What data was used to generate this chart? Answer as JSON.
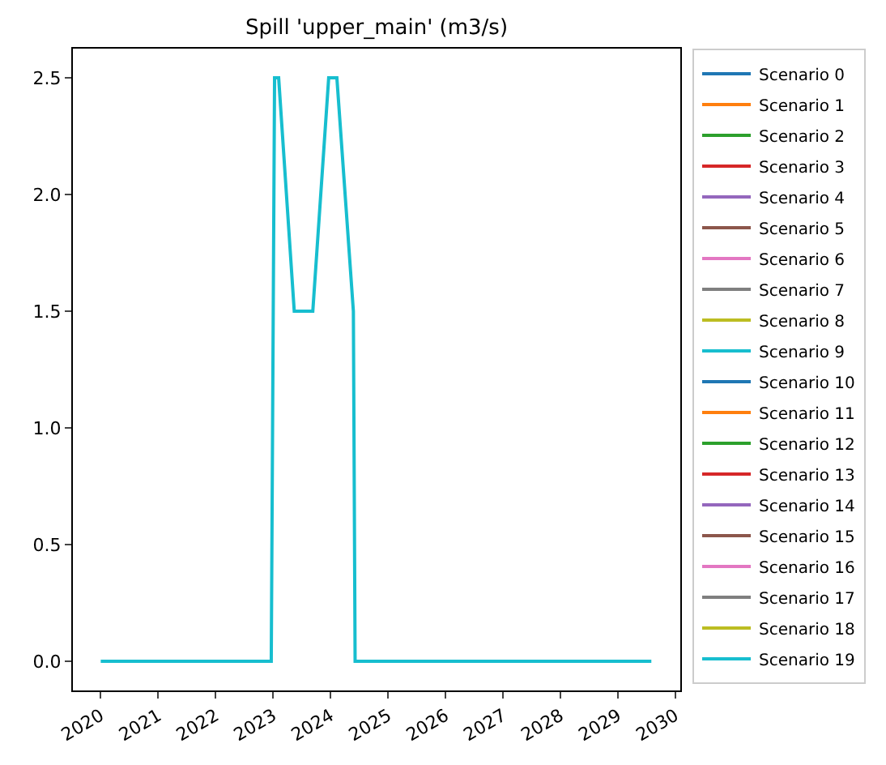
{
  "chart_data": {
    "type": "line",
    "title": "Spill 'upper_main' (m3/s)",
    "x": [
      "2020-01-01",
      "2022-12-20",
      "2023-01-10",
      "2023-02-05",
      "2023-05-15",
      "2023-09-10",
      "2023-12-20",
      "2024-02-10",
      "2024-05-25",
      "2024-06-05",
      "2029-08-01"
    ],
    "series": [
      {
        "name": "Scenario 0",
        "color": "#1f77b4",
        "values": [
          null,
          null,
          null,
          null,
          null,
          null,
          null,
          null,
          null,
          null,
          null
        ]
      },
      {
        "name": "Scenario 1",
        "color": "#ff7f0e",
        "values": [
          null,
          null,
          null,
          null,
          null,
          null,
          null,
          null,
          null,
          null,
          null
        ]
      },
      {
        "name": "Scenario 2",
        "color": "#2ca02c",
        "values": [
          null,
          null,
          null,
          null,
          null,
          null,
          null,
          null,
          null,
          null,
          null
        ]
      },
      {
        "name": "Scenario 3",
        "color": "#d62728",
        "values": [
          null,
          null,
          null,
          null,
          null,
          null,
          null,
          null,
          null,
          null,
          null
        ]
      },
      {
        "name": "Scenario 4",
        "color": "#9467bd",
        "values": [
          null,
          null,
          null,
          null,
          null,
          null,
          null,
          null,
          null,
          null,
          null
        ]
      },
      {
        "name": "Scenario 5",
        "color": "#8c564b",
        "values": [
          null,
          null,
          null,
          null,
          null,
          null,
          null,
          null,
          null,
          null,
          null
        ]
      },
      {
        "name": "Scenario 6",
        "color": "#e377c2",
        "values": [
          null,
          null,
          null,
          null,
          null,
          null,
          null,
          null,
          null,
          null,
          null
        ]
      },
      {
        "name": "Scenario 7",
        "color": "#7f7f7f",
        "values": [
          null,
          null,
          null,
          null,
          null,
          null,
          null,
          null,
          null,
          null,
          null
        ]
      },
      {
        "name": "Scenario 8",
        "color": "#bcbd22",
        "values": [
          null,
          null,
          null,
          null,
          null,
          null,
          null,
          null,
          null,
          null,
          null
        ]
      },
      {
        "name": "Scenario 9",
        "color": "#17becf",
        "values": [
          null,
          null,
          null,
          null,
          null,
          null,
          null,
          null,
          null,
          null,
          null
        ]
      },
      {
        "name": "Scenario 10",
        "color": "#1f77b4",
        "values": [
          null,
          null,
          null,
          null,
          null,
          null,
          null,
          null,
          null,
          null,
          null
        ]
      },
      {
        "name": "Scenario 11",
        "color": "#ff7f0e",
        "values": [
          null,
          null,
          null,
          null,
          null,
          null,
          null,
          null,
          null,
          null,
          null
        ]
      },
      {
        "name": "Scenario 12",
        "color": "#2ca02c",
        "values": [
          null,
          null,
          null,
          null,
          null,
          null,
          null,
          null,
          null,
          null,
          null
        ]
      },
      {
        "name": "Scenario 13",
        "color": "#d62728",
        "values": [
          null,
          null,
          null,
          null,
          null,
          null,
          null,
          null,
          null,
          null,
          null
        ]
      },
      {
        "name": "Scenario 14",
        "color": "#9467bd",
        "values": [
          null,
          null,
          null,
          null,
          null,
          null,
          null,
          null,
          null,
          null,
          null
        ]
      },
      {
        "name": "Scenario 15",
        "color": "#8c564b",
        "values": [
          null,
          null,
          null,
          null,
          null,
          null,
          null,
          null,
          null,
          null,
          null
        ]
      },
      {
        "name": "Scenario 16",
        "color": "#e377c2",
        "values": [
          null,
          null,
          null,
          null,
          null,
          null,
          null,
          null,
          null,
          null,
          null
        ]
      },
      {
        "name": "Scenario 17",
        "color": "#7f7f7f",
        "values": [
          null,
          null,
          null,
          null,
          null,
          null,
          null,
          null,
          null,
          null,
          null
        ]
      },
      {
        "name": "Scenario 18",
        "color": "#bcbd22",
        "values": [
          null,
          null,
          null,
          null,
          null,
          null,
          null,
          null,
          null,
          null,
          null
        ]
      },
      {
        "name": "Scenario 19",
        "color": "#17becf",
        "values": [
          0,
          0,
          2.5,
          2.5,
          1.5,
          1.5,
          2.5,
          2.5,
          1.5,
          0,
          0
        ]
      }
    ],
    "xlim": [
      "2019-07-08",
      "2030-02-01"
    ],
    "xticks": [
      "2020",
      "2021",
      "2022",
      "2023",
      "2024",
      "2025",
      "2026",
      "2027",
      "2028",
      "2029",
      "2030"
    ],
    "ylim": [
      -0.125,
      2.625
    ],
    "yticks": [
      {
        "value": 0,
        "label": "0.0"
      },
      {
        "value": 0.5,
        "label": "0.5"
      },
      {
        "value": 1,
        "label": "1.0"
      },
      {
        "value": 1.5,
        "label": "1.5"
      },
      {
        "value": 2,
        "label": "2.0"
      },
      {
        "value": 2.5,
        "label": "2.5"
      }
    ],
    "grid": false,
    "legend": "right",
    "marker": "none",
    "line_style": "solid"
  }
}
